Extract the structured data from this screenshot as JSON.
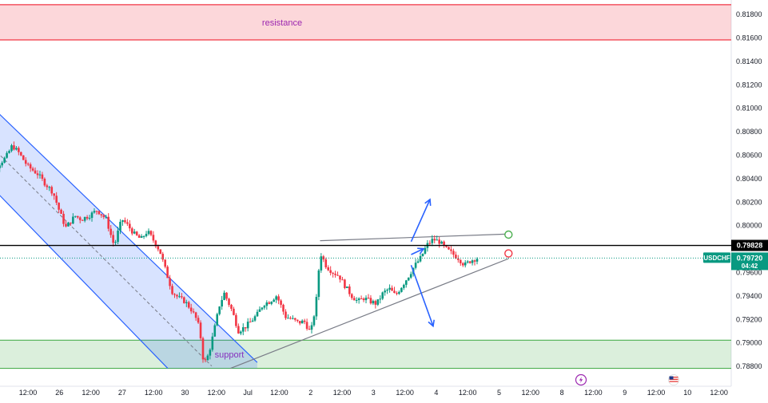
{
  "chart_data": {
    "type": "candlestick",
    "symbol": "USDCHF",
    "ylim": [
      0.787,
      0.8192
    ],
    "y_ticks": [
      "0.81800",
      "0.81600",
      "0.81400",
      "0.81200",
      "0.81000",
      "0.80800",
      "0.80600",
      "0.80400",
      "0.80200",
      "0.80000",
      "0.79600",
      "0.79400",
      "0.79200",
      "0.79000",
      "0.78800"
    ],
    "x_ticks": [
      "12:00",
      "26",
      "12:00",
      "27",
      "12:00",
      "30",
      "12:00",
      "Jul",
      "12:00",
      "2",
      "12:00",
      "3",
      "12:00",
      "4",
      "12:00",
      "5",
      "12:00",
      "8",
      "12:00",
      "9",
      "12:00",
      "10",
      "12:00"
    ],
    "zones": [
      {
        "name": "resistance",
        "label": "resistance",
        "low": 0.8158,
        "high": 0.8188,
        "color": "#f23645"
      },
      {
        "name": "support",
        "label": "support",
        "low": 0.7878,
        "high": 0.7902,
        "color": "#4caf50"
      }
    ],
    "horizontal_line": {
      "price": "0.79828",
      "value": 0.79828,
      "color": "#000000"
    },
    "current_price": {
      "symbol": "USDCHF",
      "price": "0.79720",
      "countdown": "04:42",
      "value": 0.7972,
      "color": "#089981"
    },
    "trendlines": [
      {
        "name": "channel-upper",
        "from": [
          -1.5,
          0.811
        ],
        "to": [
          7.3,
          0.7883
        ],
        "color": "#2962ff"
      },
      {
        "name": "channel-lower",
        "from": [
          -1.5,
          0.8042
        ],
        "to": [
          4.45,
          0.7878
        ],
        "color": "#2962ff"
      },
      {
        "name": "channel-mid",
        "from": [
          -1.5,
          0.8076
        ],
        "to": [
          5.85,
          0.788
        ],
        "color": "#787b86",
        "dashed": true
      },
      {
        "name": "triangle-upper",
        "from": [
          9.3,
          0.79868
        ],
        "to": [
          15.3,
          0.79925
        ],
        "color": "#787b86"
      },
      {
        "name": "triangle-lower",
        "from": [
          6.45,
          0.7878
        ],
        "to": [
          15.3,
          0.79715
        ],
        "color": "#787b86"
      }
    ],
    "projection_arrows": [
      {
        "name": "bullish-arrow",
        "path": [
          [
            12.2,
            0.7986
          ],
          [
            12.8,
            0.8022
          ]
        ],
        "color": "#2962ff"
      },
      {
        "name": "neutral-arrow",
        "path": [
          [
            12.2,
            0.7975
          ],
          [
            12.6,
            0.798
          ]
        ],
        "color": "#2962ff"
      },
      {
        "name": "bearish-arrow",
        "path": [
          [
            12.2,
            0.7966
          ],
          [
            12.9,
            0.7914
          ]
        ],
        "color": "#2962ff"
      }
    ],
    "markers": [
      {
        "name": "target-marker",
        "x": 15.3,
        "y": 0.7992,
        "color": "#4caf50"
      },
      {
        "name": "stop-marker",
        "x": 15.3,
        "y": 0.7976,
        "color": "#f23645"
      }
    ],
    "price_path": [
      [
        -1.5,
        0.8052
      ],
      [
        -1.0,
        0.805
      ],
      [
        -0.7,
        0.8058
      ],
      [
        -0.5,
        0.8068
      ],
      [
        -0.3,
        0.8062
      ],
      [
        0.0,
        0.805
      ],
      [
        0.3,
        0.8044
      ],
      [
        0.5,
        0.8037
      ],
      [
        0.8,
        0.8028
      ],
      [
        1.0,
        0.8012
      ],
      [
        1.2,
        0.7998
      ],
      [
        1.5,
        0.8008
      ],
      [
        1.7,
        0.8005
      ],
      [
        2.0,
        0.8009
      ],
      [
        2.2,
        0.8013
      ],
      [
        2.5,
        0.8005
      ],
      [
        2.6,
        0.7995
      ],
      [
        2.75,
        0.7982
      ],
      [
        2.9,
        0.7998
      ],
      [
        3.0,
        0.8005
      ],
      [
        3.2,
        0.7999
      ],
      [
        3.4,
        0.7992
      ],
      [
        3.6,
        0.7988
      ],
      [
        3.8,
        0.7995
      ],
      [
        4.0,
        0.7987
      ],
      [
        4.2,
        0.7978
      ],
      [
        4.4,
        0.796
      ],
      [
        4.6,
        0.7943
      ],
      [
        4.8,
        0.7938
      ],
      [
        5.0,
        0.7935
      ],
      [
        5.2,
        0.7928
      ],
      [
        5.4,
        0.7918
      ],
      [
        5.5,
        0.7904
      ],
      [
        5.6,
        0.7881
      ],
      [
        5.75,
        0.789
      ],
      [
        5.9,
        0.7907
      ],
      [
        6.1,
        0.7932
      ],
      [
        6.25,
        0.7942
      ],
      [
        6.5,
        0.7927
      ],
      [
        6.7,
        0.791
      ],
      [
        6.9,
        0.7913
      ],
      [
        7.1,
        0.7918
      ],
      [
        7.3,
        0.7924
      ],
      [
        7.5,
        0.7933
      ],
      [
        7.7,
        0.7935
      ],
      [
        7.9,
        0.794
      ],
      [
        8.0,
        0.7935
      ],
      [
        8.2,
        0.7922
      ],
      [
        8.4,
        0.792
      ],
      [
        8.6,
        0.7917
      ],
      [
        8.8,
        0.7918
      ],
      [
        9.0,
        0.7908
      ],
      [
        9.1,
        0.7922
      ],
      [
        9.2,
        0.794
      ],
      [
        9.3,
        0.7977
      ],
      [
        9.5,
        0.7965
      ],
      [
        9.7,
        0.796
      ],
      [
        9.9,
        0.7957
      ],
      [
        10.1,
        0.7948
      ],
      [
        10.3,
        0.794
      ],
      [
        10.5,
        0.7935
      ],
      [
        10.7,
        0.7938
      ],
      [
        10.9,
        0.7935
      ],
      [
        11.1,
        0.7933
      ],
      [
        11.3,
        0.7942
      ],
      [
        11.5,
        0.7946
      ],
      [
        11.7,
        0.794
      ],
      [
        11.9,
        0.7948
      ],
      [
        12.1,
        0.7956
      ],
      [
        12.3,
        0.7965
      ],
      [
        12.5,
        0.7972
      ],
      [
        12.7,
        0.7983
      ],
      [
        12.9,
        0.7988
      ],
      [
        13.1,
        0.7986
      ],
      [
        13.3,
        0.798
      ],
      [
        13.5,
        0.7976
      ],
      [
        13.7,
        0.7972
      ],
      [
        13.9,
        0.7966
      ],
      [
        14.1,
        0.797
      ],
      [
        14.3,
        0.7972
      ]
    ]
  }
}
